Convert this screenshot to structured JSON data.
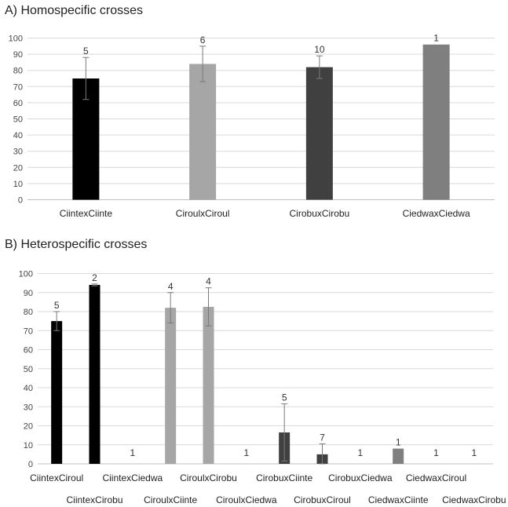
{
  "chart_data": [
    {
      "type": "bar",
      "title": "A) Homospecific crosses",
      "xlabel": "",
      "ylabel": "",
      "ylim": [
        0,
        100
      ],
      "yticks": [
        0,
        10,
        20,
        30,
        40,
        50,
        60,
        70,
        80,
        90,
        100
      ],
      "grid": true,
      "categories": [
        "CiintexCiinte",
        "CiroulxCiroul",
        "CirobuxCirobu",
        "CiedwaxCiedwa"
      ],
      "values": [
        75,
        84,
        82,
        96
      ],
      "error": [
        13,
        11,
        7,
        0
      ],
      "n": [
        "5",
        "6",
        "10",
        "1"
      ],
      "colors": [
        "#000000",
        "#a6a6a6",
        "#404040",
        "#7f7f7f"
      ]
    },
    {
      "type": "bar",
      "title": "B) Heterospecific crosses",
      "xlabel": "",
      "ylabel": "",
      "ylim": [
        0,
        100
      ],
      "yticks": [
        0,
        10,
        20,
        30,
        40,
        50,
        60,
        70,
        80,
        90,
        100
      ],
      "grid": true,
      "categories": [
        "CiintexCiroul",
        "CiintexCirobu",
        "CiintexCiedwa",
        "CiroulxCiinte",
        "CiroulxCirobu",
        "CiroulxCiedwa",
        "CirobuxCiinte",
        "CirobuxCiroul",
        "CirobuxCiedwa",
        "CiedwaxCiinte",
        "CiedwaxCiroul",
        "CiedwaxCirobu"
      ],
      "values": [
        75,
        94,
        0,
        82,
        82.5,
        0,
        16.5,
        5,
        0,
        8,
        0,
        0
      ],
      "error": [
        5,
        0.5,
        0,
        8,
        10,
        0,
        15,
        5.5,
        0,
        0,
        0,
        0
      ],
      "n": [
        "5",
        "2",
        "1",
        "4",
        "4",
        "1",
        "5",
        "7",
        "1",
        "1",
        "1",
        "1"
      ],
      "colors": [
        "#000000",
        "#000000",
        "#000000",
        "#a6a6a6",
        "#a6a6a6",
        "#a6a6a6",
        "#404040",
        "#404040",
        "#404040",
        "#7f7f7f",
        "#7f7f7f",
        "#7f7f7f"
      ]
    }
  ]
}
